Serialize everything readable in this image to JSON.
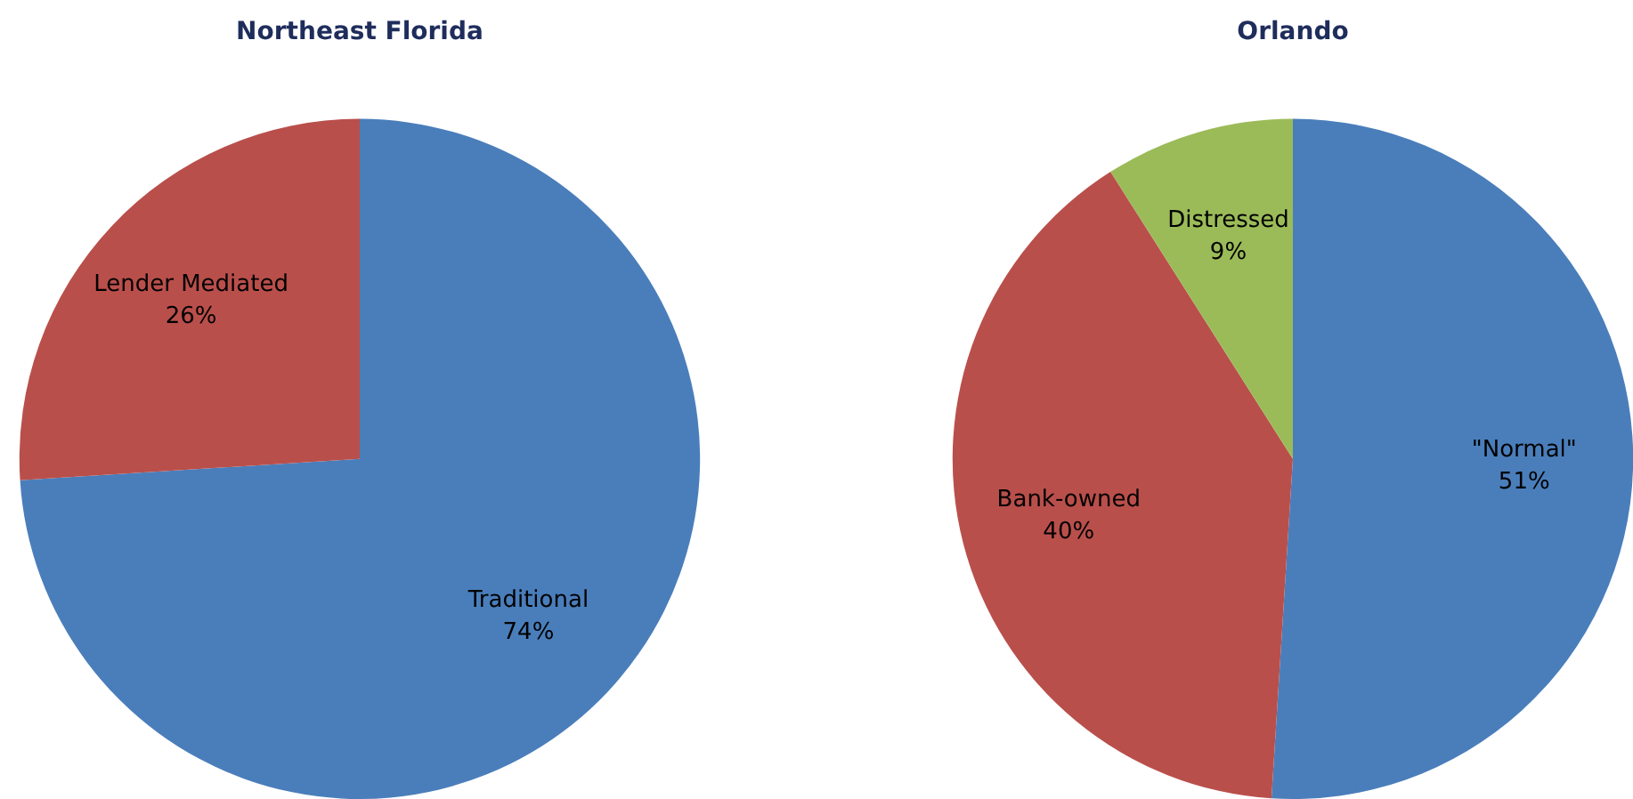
{
  "chart_data": [
    {
      "type": "pie",
      "title": "Northeast Florida",
      "categories": [
        "Traditional",
        "Lender Mediated"
      ],
      "values": [
        74,
        26
      ],
      "colors": [
        "#4a7ebb",
        "#b94f4b"
      ],
      "value_labels": [
        "74%",
        "26%"
      ],
      "legend": false
    },
    {
      "type": "pie",
      "title": "Orlando",
      "categories": [
        "\"Normal\"",
        "Bank-owned",
        "Distressed"
      ],
      "values": [
        51,
        40,
        9
      ],
      "colors": [
        "#4a7ebb",
        "#b94f4b",
        "#9bbb59"
      ],
      "value_labels": [
        "51%",
        "40%",
        "9%"
      ],
      "legend": false
    }
  ]
}
